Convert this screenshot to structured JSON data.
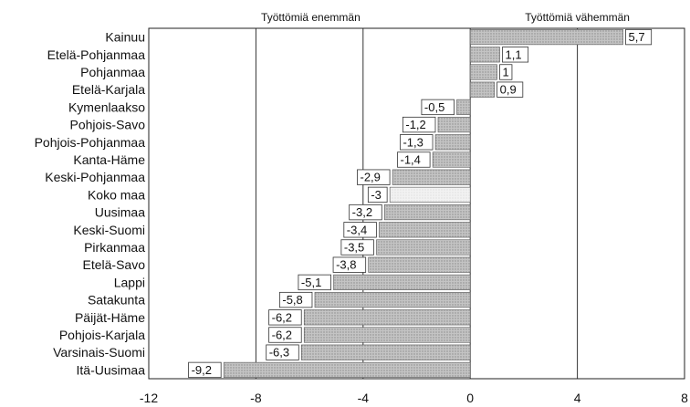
{
  "chart_data": {
    "type": "bar",
    "orientation": "horizontal",
    "title": "",
    "xlabel": "",
    "ylabel": "",
    "header_left": "Työttömiä enemmän",
    "header_right": "Työttömiä vähemmän",
    "xlim": [
      -12,
      8
    ],
    "xticks": [
      -12,
      -8,
      -4,
      0,
      4,
      8
    ],
    "grid": "vertical",
    "categories": [
      "Kainuu",
      "Etelä-Pohjanmaa",
      "Pohjanmaa",
      "Etelä-Karjala",
      "Kymenlaakso",
      "Pohjois-Savo",
      "Pohjois-Pohjanmaa",
      "Kanta-Häme",
      "Keski-Pohjanmaa",
      "Koko maa",
      "Uusimaa",
      "Keski-Suomi",
      "Pirkanmaa",
      "Etelä-Savo",
      "Lappi",
      "Satakunta",
      "Päijät-Häme",
      "Pohjois-Karjala",
      "Varsinais-Suomi",
      "Itä-Uusimaa"
    ],
    "values": [
      5.7,
      1.1,
      1,
      0.9,
      -0.5,
      -1.2,
      -1.3,
      -1.4,
      -2.9,
      -3,
      -3.2,
      -3.4,
      -3.5,
      -3.8,
      -5.1,
      -5.8,
      -6.2,
      -6.2,
      -6.3,
      -9.2
    ],
    "value_labels": [
      "5,7",
      "1,1",
      "1",
      "0,9",
      "-0,5",
      "-1,2",
      "-1,3",
      "-1,4",
      "-2,9",
      "-3",
      "-3,2",
      "-3,4",
      "-3,5",
      "-3,8",
      "-5,1",
      "-5,8",
      "-6,2",
      "-6,2",
      "-6,3",
      "-9,2"
    ],
    "highlight_category": "Koko maa",
    "colors": {
      "bar": "#bdbdbd",
      "highlight_bar": "#eeeeee",
      "grid": "#333333",
      "frame": "#222222"
    }
  }
}
